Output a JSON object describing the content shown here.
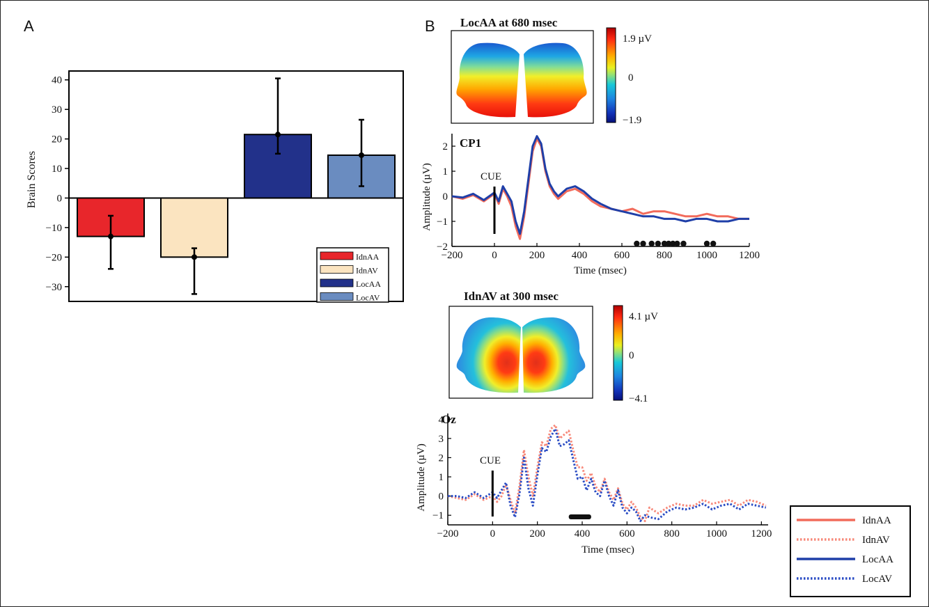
{
  "panel_a_letter": "A",
  "panel_b_letter": "B",
  "chart_data": [
    {
      "type": "bar",
      "title": "",
      "ylabel": "Brain Scores",
      "xlabel": "",
      "ylim": [
        -35,
        43
      ],
      "yticks": [
        40,
        30,
        20,
        10,
        0,
        -10,
        -20,
        -30
      ],
      "yticklabels": [
        "40",
        "30",
        "20",
        "10",
        "0",
        "−10",
        "−20",
        "−30"
      ],
      "categories": [
        "IdnAA",
        "IdnAV",
        "LocAA",
        "LocAV"
      ],
      "values": [
        -13.0,
        -20.0,
        21.5,
        14.5
      ],
      "error_low": [
        -24.0,
        -32.5,
        15.0,
        4.0
      ],
      "error_high": [
        -6.0,
        -17.0,
        40.5,
        26.5
      ],
      "colors": [
        "#e8262b",
        "#fbe4c0",
        "#22318a",
        "#6a8cc0"
      ],
      "legend": [
        "IdnAA",
        "IdnAV",
        "LocAA",
        "LocAV"
      ],
      "legend_position": "bottom-right"
    },
    {
      "type": "heatmap",
      "title": "LocAA at 680 msec",
      "colorbar_labels": [
        "1.9 µV",
        "0",
        "−1.9"
      ],
      "colorbar_range": [
        -1.9,
        1.9
      ]
    },
    {
      "type": "line",
      "title": "CP1",
      "xlabel": "Time (msec)",
      "ylabel": "Amplitude (µV)",
      "xlim": [
        -200,
        1200
      ],
      "ylim": [
        -2,
        2.5
      ],
      "xticks": [
        -200,
        0,
        200,
        400,
        600,
        800,
        1000,
        1200
      ],
      "xticklabels": [
        "−200",
        "0",
        "200",
        "400",
        "600",
        "800",
        "1000",
        "1200"
      ],
      "yticks": [
        2,
        1,
        0,
        -1,
        -2
      ],
      "yticklabels": [
        "2",
        "1",
        "0",
        "−1",
        "−2"
      ],
      "annotation": "CUE",
      "cue_time": 0,
      "x": [
        -200,
        -150,
        -100,
        -50,
        0,
        20,
        40,
        60,
        80,
        100,
        120,
        140,
        160,
        180,
        200,
        220,
        240,
        260,
        280,
        300,
        340,
        380,
        420,
        460,
        500,
        550,
        600,
        650,
        700,
        750,
        800,
        850,
        900,
        950,
        1000,
        1050,
        1100,
        1150,
        1200
      ],
      "series": [
        {
          "name": "IdnAA",
          "color": "#f26b5b",
          "dash": "solid",
          "values": [
            0.0,
            -0.1,
            0.05,
            -0.2,
            0.1,
            -0.3,
            0.3,
            0.0,
            -0.4,
            -1.2,
            -1.7,
            -0.8,
            0.5,
            1.8,
            2.3,
            2.0,
            1.0,
            0.4,
            0.1,
            -0.1,
            0.2,
            0.3,
            0.1,
            -0.2,
            -0.4,
            -0.5,
            -0.6,
            -0.5,
            -0.7,
            -0.6,
            -0.6,
            -0.7,
            -0.8,
            -0.8,
            -0.7,
            -0.8,
            -0.8,
            -0.9,
            -0.9
          ]
        },
        {
          "name": "LocAA",
          "color": "#1f3fa8",
          "dash": "solid",
          "values": [
            0.0,
            -0.05,
            0.1,
            -0.15,
            0.15,
            -0.2,
            0.4,
            0.1,
            -0.2,
            -1.0,
            -1.5,
            -0.6,
            0.7,
            2.0,
            2.4,
            2.1,
            1.1,
            0.5,
            0.2,
            0.0,
            0.3,
            0.4,
            0.2,
            -0.1,
            -0.3,
            -0.5,
            -0.6,
            -0.7,
            -0.8,
            -0.8,
            -0.9,
            -0.9,
            -1.0,
            -0.9,
            -0.9,
            -1.0,
            -1.0,
            -0.9,
            -0.9
          ]
        }
      ],
      "significant_times": [
        670,
        700,
        740,
        770,
        800,
        820,
        840,
        860,
        890,
        1000,
        1030
      ]
    },
    {
      "type": "heatmap",
      "title": "IdnAV at 300 msec",
      "colorbar_labels": [
        "4.1 µV",
        "0",
        "−4.1"
      ],
      "colorbar_range": [
        -4.1,
        4.1
      ]
    },
    {
      "type": "line",
      "title": "Oz",
      "xlabel": "Time (msec)",
      "ylabel": "Amplitude (µV)",
      "xlim": [
        -200,
        1230
      ],
      "ylim": [
        -1.5,
        4.3
      ],
      "xticks": [
        -200,
        0,
        200,
        400,
        600,
        800,
        1000,
        1200
      ],
      "xticklabels": [
        "−200",
        "0",
        "200",
        "400",
        "600",
        "800",
        "1000",
        "1200"
      ],
      "yticks": [
        4,
        3,
        2,
        1,
        0,
        -1
      ],
      "yticklabels": [
        "4",
        "3",
        "2",
        "1",
        "0",
        "−1"
      ],
      "annotation": "CUE",
      "cue_time": 0,
      "x": [
        -200,
        -160,
        -120,
        -80,
        -40,
        0,
        20,
        40,
        60,
        80,
        100,
        120,
        140,
        160,
        180,
        200,
        220,
        240,
        260,
        280,
        300,
        320,
        340,
        360,
        380,
        400,
        420,
        440,
        460,
        480,
        500,
        520,
        540,
        560,
        580,
        600,
        620,
        640,
        660,
        680,
        700,
        740,
        780,
        820,
        860,
        900,
        940,
        980,
        1020,
        1060,
        1100,
        1140,
        1180,
        1220
      ],
      "series": [
        {
          "name": "IdnAV",
          "color": "#f7897a",
          "dash": "dotted",
          "values": [
            0.0,
            -0.1,
            -0.2,
            0.1,
            -0.2,
            0.0,
            -0.3,
            0.0,
            0.6,
            -0.2,
            -0.9,
            0.5,
            2.4,
            1.0,
            0.0,
            1.5,
            2.8,
            2.6,
            3.5,
            3.7,
            3.0,
            3.2,
            3.4,
            2.4,
            1.5,
            1.5,
            0.8,
            1.2,
            0.5,
            0.2,
            0.9,
            0.2,
            -0.2,
            0.4,
            -0.4,
            -0.7,
            -0.3,
            -0.6,
            -1.1,
            -1.3,
            -0.6,
            -0.9,
            -0.6,
            -0.4,
            -0.5,
            -0.5,
            -0.2,
            -0.4,
            -0.3,
            -0.2,
            -0.5,
            -0.2,
            -0.3,
            -0.5
          ]
        },
        {
          "name": "LocAV",
          "color": "#2a4cc4",
          "dash": "dotted",
          "values": [
            0.0,
            0.0,
            -0.1,
            0.2,
            -0.1,
            0.2,
            -0.1,
            0.3,
            0.7,
            -0.5,
            -1.1,
            0.1,
            2.0,
            0.4,
            -0.5,
            1.1,
            2.5,
            2.3,
            3.1,
            3.5,
            2.6,
            2.7,
            2.9,
            1.9,
            0.9,
            1.0,
            0.3,
            0.9,
            0.2,
            0.0,
            0.8,
            0.0,
            -0.5,
            0.3,
            -0.6,
            -0.9,
            -0.6,
            -0.8,
            -1.3,
            -1.0,
            -1.1,
            -1.2,
            -0.8,
            -0.6,
            -0.7,
            -0.6,
            -0.4,
            -0.7,
            -0.5,
            -0.4,
            -0.7,
            -0.4,
            -0.5,
            -0.6
          ]
        }
      ],
      "significant_range": [
        340,
        440
      ]
    }
  ],
  "shared_legend": {
    "position": "bottom-right",
    "items": [
      {
        "label": "IdnAA",
        "color": "#f26b5b",
        "dash": "solid"
      },
      {
        "label": "IdnAV",
        "color": "#f7897a",
        "dash": "dotted"
      },
      {
        "label": "LocAA",
        "color": "#1f3fa8",
        "dash": "solid"
      },
      {
        "label": "LocAV",
        "color": "#2a4cc4",
        "dash": "dotted"
      }
    ]
  }
}
